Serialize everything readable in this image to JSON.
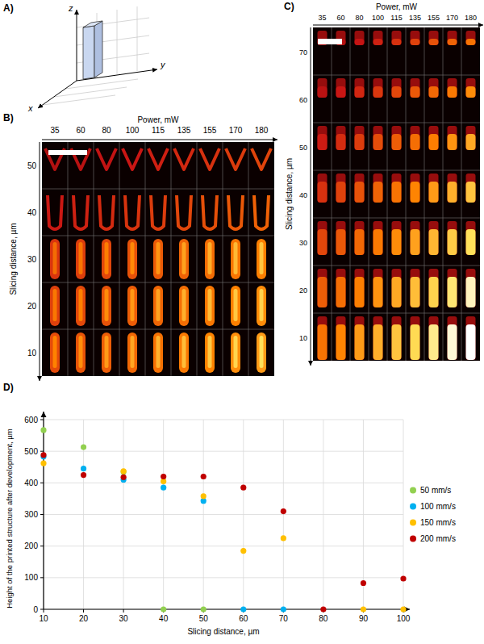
{
  "panels": {
    "A": {
      "label": "A)",
      "axes": [
        "z",
        "y",
        "x"
      ]
    },
    "B": {
      "label": "B)",
      "x_title": "Power, mW",
      "columns": [
        35,
        60,
        80,
        100,
        115,
        135,
        155,
        170,
        180
      ],
      "y_title": "Slicing distance, µm",
      "rows": [
        50,
        40,
        30,
        20,
        10
      ]
    },
    "C": {
      "label": "C)",
      "x_title": "Power, mW",
      "columns": [
        35,
        60,
        80,
        100,
        115,
        135,
        155,
        170,
        180
      ],
      "y_title": "Slicing distance, µm",
      "rows": [
        70,
        60,
        50,
        40,
        30,
        20,
        10
      ]
    }
  },
  "chart_data": {
    "label": "D)",
    "type": "scatter",
    "x_label": "Slicing distance, µm",
    "y_label": "Height of the printed structure after development, µm",
    "x": [
      10,
      20,
      30,
      40,
      50,
      60,
      70,
      80,
      90,
      100
    ],
    "xlim": [
      10,
      100
    ],
    "xticks": [
      10,
      20,
      30,
      40,
      50,
      60,
      70,
      80,
      90,
      100
    ],
    "ylim": [
      0,
      600
    ],
    "yticks": [
      0,
      100,
      200,
      300,
      400,
      500,
      600
    ],
    "grid": true,
    "legend": "right",
    "marker": "circle",
    "series": [
      {
        "name": "50 mm/s",
        "color": "#92d050",
        "values": [
          567,
          513,
          435,
          0,
          0,
          null,
          null,
          null,
          null,
          null
        ]
      },
      {
        "name": "100 mm/s",
        "color": "#00b0f0",
        "values": [
          483,
          445,
          410,
          385,
          343,
          0,
          0,
          null,
          null,
          null
        ]
      },
      {
        "name": "150 mm/s",
        "color": "#ffc000",
        "values": [
          462,
          null,
          437,
          405,
          358,
          185,
          225,
          null,
          0,
          0
        ]
      },
      {
        "name": "200 mm/s",
        "color": "#c00000",
        "values": [
          488,
          425,
          418,
          420,
          420,
          385,
          310,
          0,
          83,
          97
        ]
      }
    ]
  }
}
